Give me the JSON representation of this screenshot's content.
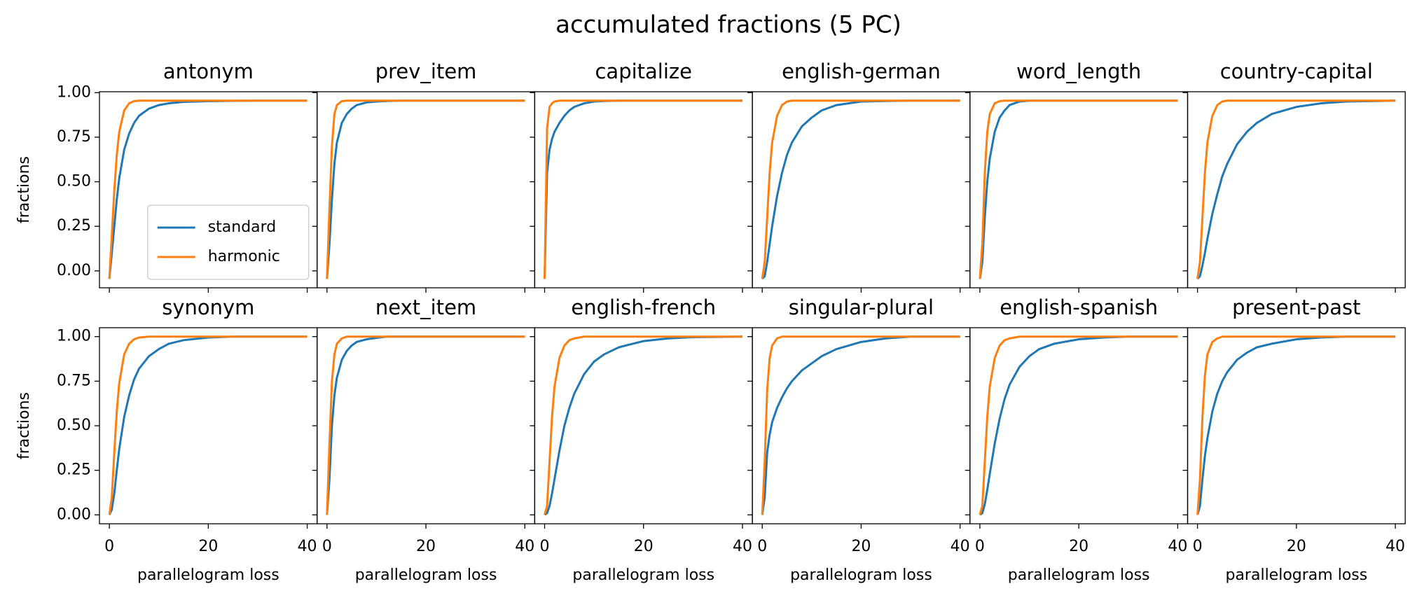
{
  "title": "accumulated fractions (5 PC)",
  "chart_data": [
    {
      "type": "line",
      "title": "antonym",
      "ylabel": "fractions",
      "legend": "lower right",
      "x": [
        0,
        0.5,
        1,
        1.5,
        2,
        3,
        4,
        5,
        6,
        8,
        10,
        12,
        15,
        20,
        25,
        30,
        40
      ],
      "series": [
        {
          "name": "standard",
          "color": "#1f77b4",
          "values": [
            -0.045,
            0.1,
            0.25,
            0.4,
            0.52,
            0.68,
            0.77,
            0.83,
            0.87,
            0.91,
            0.93,
            0.94,
            0.948,
            0.952,
            0.954,
            0.955,
            0.955
          ]
        },
        {
          "name": "harmonic",
          "color": "#ff7f0e",
          "values": [
            -0.045,
            0.2,
            0.45,
            0.65,
            0.78,
            0.9,
            0.94,
            0.952,
            0.955,
            0.955,
            0.955,
            0.955,
            0.955,
            0.955,
            0.955,
            0.955,
            0.955
          ]
        }
      ],
      "xlim": [
        -2,
        42
      ],
      "ylim": [
        -0.095,
        1.005
      ],
      "xticks": [
        0,
        20,
        40
      ],
      "yticks": [
        {
          "value": 0,
          "label": "0.00"
        },
        {
          "value": 0.25,
          "label": "0.25"
        },
        {
          "value": 0.5,
          "label": "0.50"
        },
        {
          "value": 0.75,
          "label": "0.75"
        },
        {
          "value": 1,
          "label": "1.00"
        }
      ]
    },
    {
      "type": "line",
      "title": "prev_item",
      "x": [
        0,
        0.5,
        1,
        1.5,
        2,
        3,
        4,
        5,
        6,
        8,
        10,
        12,
        15,
        20,
        25,
        30,
        40
      ],
      "series": [
        {
          "color": "#1f77b4",
          "values": [
            -0.045,
            0.15,
            0.4,
            0.6,
            0.72,
            0.83,
            0.88,
            0.91,
            0.93,
            0.945,
            0.95,
            0.953,
            0.955,
            0.955,
            0.955,
            0.955,
            0.955
          ]
        },
        {
          "color": "#ff7f0e",
          "values": [
            -0.045,
            0.35,
            0.7,
            0.88,
            0.93,
            0.952,
            0.955,
            0.955,
            0.955,
            0.955,
            0.955,
            0.955,
            0.955,
            0.955,
            0.955,
            0.955,
            0.955
          ]
        }
      ],
      "xlim": [
        -2,
        42
      ],
      "ylim": [
        -0.095,
        1.005
      ],
      "xticks": [
        0,
        20,
        40
      ],
      "yticks": [
        0,
        0.25,
        0.5,
        0.75,
        1
      ]
    },
    {
      "type": "line",
      "title": "capitalize",
      "x": [
        0,
        0.5,
        1,
        1.5,
        2,
        3,
        4,
        5,
        6,
        8,
        10,
        12,
        15,
        20,
        25,
        30,
        40
      ],
      "series": [
        {
          "color": "#1f77b4",
          "values": [
            -0.045,
            0.55,
            0.68,
            0.74,
            0.78,
            0.83,
            0.87,
            0.9,
            0.92,
            0.94,
            0.95,
            0.953,
            0.955,
            0.955,
            0.955,
            0.955,
            0.955
          ]
        },
        {
          "color": "#ff7f0e",
          "values": [
            -0.045,
            0.8,
            0.92,
            0.94,
            0.95,
            0.955,
            0.955,
            0.955,
            0.955,
            0.955,
            0.955,
            0.955,
            0.955,
            0.955,
            0.955,
            0.955,
            0.955
          ]
        }
      ],
      "xlim": [
        -2,
        42
      ],
      "ylim": [
        -0.095,
        1.005
      ],
      "xticks": [
        0,
        20,
        40
      ],
      "yticks": [
        0,
        0.25,
        0.5,
        0.75,
        1
      ]
    },
    {
      "type": "line",
      "title": "english-german",
      "x": [
        0,
        0.5,
        1,
        1.5,
        2,
        3,
        4,
        5,
        6,
        8,
        10,
        12,
        15,
        20,
        25,
        30,
        40
      ],
      "series": [
        {
          "color": "#1f77b4",
          "values": [
            -0.045,
            -0.03,
            0.05,
            0.15,
            0.25,
            0.42,
            0.55,
            0.65,
            0.72,
            0.81,
            0.86,
            0.9,
            0.93,
            0.95,
            0.953,
            0.955,
            0.955
          ]
        },
        {
          "color": "#ff7f0e",
          "values": [
            -0.045,
            0.05,
            0.3,
            0.55,
            0.72,
            0.87,
            0.93,
            0.95,
            0.955,
            0.955,
            0.955,
            0.955,
            0.955,
            0.955,
            0.955,
            0.955,
            0.955
          ]
        }
      ],
      "xlim": [
        -2,
        42
      ],
      "ylim": [
        -0.095,
        1.005
      ],
      "xticks": [
        0,
        20,
        40
      ],
      "yticks": [
        0,
        0.25,
        0.5,
        0.75,
        1
      ]
    },
    {
      "type": "line",
      "title": "word_length",
      "x": [
        0,
        0.5,
        1,
        1.5,
        2,
        3,
        4,
        5,
        6,
        8,
        10,
        12,
        15,
        20,
        25,
        30,
        40
      ],
      "series": [
        {
          "color": "#1f77b4",
          "values": [
            -0.045,
            0.05,
            0.3,
            0.5,
            0.63,
            0.78,
            0.86,
            0.9,
            0.93,
            0.95,
            0.955,
            0.955,
            0.955,
            0.955,
            0.955,
            0.955,
            0.955
          ]
        },
        {
          "color": "#ff7f0e",
          "values": [
            -0.045,
            0.15,
            0.55,
            0.78,
            0.88,
            0.94,
            0.952,
            0.955,
            0.955,
            0.955,
            0.955,
            0.955,
            0.955,
            0.955,
            0.955,
            0.955,
            0.955
          ]
        }
      ],
      "xlim": [
        -2,
        42
      ],
      "ylim": [
        -0.095,
        1.005
      ],
      "xticks": [
        0,
        20,
        40
      ],
      "yticks": [
        0,
        0.25,
        0.5,
        0.75,
        1
      ]
    },
    {
      "type": "line",
      "title": "country-capital",
      "x": [
        0,
        0.5,
        1,
        1.5,
        2,
        3,
        4,
        5,
        6,
        8,
        10,
        12,
        15,
        20,
        25,
        30,
        40
      ],
      "series": [
        {
          "color": "#1f77b4",
          "values": [
            -0.045,
            -0.03,
            0.03,
            0.1,
            0.18,
            0.32,
            0.43,
            0.53,
            0.6,
            0.71,
            0.78,
            0.83,
            0.88,
            0.92,
            0.94,
            0.95,
            0.955
          ]
        },
        {
          "color": "#ff7f0e",
          "values": [
            -0.045,
            0.05,
            0.3,
            0.55,
            0.72,
            0.87,
            0.93,
            0.95,
            0.955,
            0.955,
            0.955,
            0.955,
            0.955,
            0.955,
            0.955,
            0.955,
            0.955
          ]
        }
      ],
      "xlim": [
        -2,
        42
      ],
      "ylim": [
        -0.095,
        1.005
      ],
      "xticks": [
        0,
        20,
        40
      ],
      "yticks": [
        0,
        0.25,
        0.5,
        0.75,
        1
      ]
    },
    {
      "type": "line",
      "title": "synonym",
      "ylabel": "fractions",
      "xlabel": "parallelogram loss",
      "x": [
        0,
        0.5,
        1,
        1.5,
        2,
        3,
        4,
        5,
        6,
        8,
        10,
        12,
        15,
        20,
        25,
        30,
        40
      ],
      "series": [
        {
          "color": "#1f77b4",
          "values": [
            0,
            0.03,
            0.12,
            0.25,
            0.37,
            0.55,
            0.67,
            0.76,
            0.82,
            0.89,
            0.93,
            0.96,
            0.98,
            0.995,
            1,
            1,
            1
          ]
        },
        {
          "color": "#ff7f0e",
          "values": [
            0,
            0.1,
            0.35,
            0.58,
            0.74,
            0.9,
            0.96,
            0.985,
            0.995,
            1,
            1,
            1,
            1,
            1,
            1,
            1,
            1
          ]
        }
      ],
      "xlim": [
        -2,
        42
      ],
      "ylim": [
        -0.05,
        1.05
      ],
      "xticks": [
        0,
        20,
        40
      ],
      "yticks": [
        {
          "value": 0,
          "label": "0.00"
        },
        {
          "value": 0.25,
          "label": "0.25"
        },
        {
          "value": 0.5,
          "label": "0.50"
        },
        {
          "value": 0.75,
          "label": "0.75"
        },
        {
          "value": 1,
          "label": "1.00"
        }
      ]
    },
    {
      "type": "line",
      "title": "next_item",
      "xlabel": "parallelogram loss",
      "x": [
        0,
        0.5,
        1,
        1.5,
        2,
        3,
        4,
        5,
        6,
        8,
        10,
        12,
        15,
        20,
        25,
        30,
        40
      ],
      "series": [
        {
          "color": "#1f77b4",
          "values": [
            0,
            0.2,
            0.5,
            0.67,
            0.77,
            0.87,
            0.92,
            0.95,
            0.97,
            0.985,
            0.993,
            1,
            1,
            1,
            1,
            1,
            1
          ]
        },
        {
          "color": "#ff7f0e",
          "values": [
            0,
            0.4,
            0.75,
            0.9,
            0.96,
            0.99,
            1,
            1,
            1,
            1,
            1,
            1,
            1,
            1,
            1,
            1,
            1
          ]
        }
      ],
      "xlim": [
        -2,
        42
      ],
      "ylim": [
        -0.05,
        1.05
      ],
      "xticks": [
        0,
        20,
        40
      ],
      "yticks": [
        0,
        0.25,
        0.5,
        0.75,
        1
      ]
    },
    {
      "type": "line",
      "title": "english-french",
      "xlabel": "parallelogram loss",
      "x": [
        0,
        0.5,
        1,
        1.5,
        2,
        3,
        4,
        5,
        6,
        8,
        10,
        12,
        15,
        20,
        25,
        30,
        40
      ],
      "series": [
        {
          "color": "#1f77b4",
          "values": [
            0,
            0.01,
            0.05,
            0.12,
            0.2,
            0.36,
            0.5,
            0.6,
            0.68,
            0.79,
            0.86,
            0.9,
            0.94,
            0.975,
            0.99,
            0.997,
            1
          ]
        },
        {
          "color": "#ff7f0e",
          "values": [
            0,
            0.05,
            0.3,
            0.55,
            0.72,
            0.88,
            0.95,
            0.98,
            0.99,
            1,
            1,
            1,
            1,
            1,
            1,
            1,
            1
          ]
        }
      ],
      "xlim": [
        -2,
        42
      ],
      "ylim": [
        -0.05,
        1.05
      ],
      "xticks": [
        0,
        20,
        40
      ],
      "yticks": [
        0,
        0.25,
        0.5,
        0.75,
        1
      ]
    },
    {
      "type": "line",
      "title": "singular-plural",
      "xlabel": "parallelogram loss",
      "x": [
        0,
        0.5,
        1,
        1.5,
        2,
        3,
        4,
        5,
        6,
        8,
        10,
        12,
        15,
        20,
        25,
        30,
        40
      ],
      "series": [
        {
          "color": "#1f77b4",
          "values": [
            0,
            0.1,
            0.35,
            0.45,
            0.52,
            0.6,
            0.66,
            0.71,
            0.75,
            0.81,
            0.85,
            0.89,
            0.93,
            0.97,
            0.99,
            1,
            1
          ]
        },
        {
          "color": "#ff7f0e",
          "values": [
            0,
            0.3,
            0.7,
            0.88,
            0.95,
            0.99,
            1,
            1,
            1,
            1,
            1,
            1,
            1,
            1,
            1,
            1,
            1
          ]
        }
      ],
      "xlim": [
        -2,
        42
      ],
      "ylim": [
        -0.05,
        1.05
      ],
      "xticks": [
        0,
        20,
        40
      ],
      "yticks": [
        0,
        0.25,
        0.5,
        0.75,
        1
      ]
    },
    {
      "type": "line",
      "title": "english-spanish",
      "xlabel": "parallelogram loss",
      "x": [
        0,
        0.5,
        1,
        1.5,
        2,
        3,
        4,
        5,
        6,
        8,
        10,
        12,
        15,
        20,
        25,
        30,
        40
      ],
      "series": [
        {
          "color": "#1f77b4",
          "values": [
            0,
            0.01,
            0.06,
            0.14,
            0.23,
            0.4,
            0.54,
            0.65,
            0.73,
            0.83,
            0.89,
            0.93,
            0.96,
            0.985,
            0.995,
            1,
            1
          ]
        },
        {
          "color": "#ff7f0e",
          "values": [
            0,
            0.05,
            0.3,
            0.55,
            0.72,
            0.88,
            0.95,
            0.98,
            0.99,
            1,
            1,
            1,
            1,
            1,
            1,
            1,
            1
          ]
        }
      ],
      "xlim": [
        -2,
        42
      ],
      "ylim": [
        -0.05,
        1.05
      ],
      "xticks": [
        0,
        20,
        40
      ],
      "yticks": [
        0,
        0.25,
        0.5,
        0.75,
        1
      ]
    },
    {
      "type": "line",
      "title": "present-past",
      "xlabel": "parallelogram loss",
      "x": [
        0,
        0.5,
        1,
        1.5,
        2,
        3,
        4,
        5,
        6,
        8,
        10,
        12,
        15,
        20,
        25,
        30,
        40
      ],
      "series": [
        {
          "color": "#1f77b4",
          "values": [
            0,
            0.05,
            0.2,
            0.33,
            0.43,
            0.58,
            0.68,
            0.75,
            0.8,
            0.87,
            0.91,
            0.94,
            0.96,
            0.985,
            0.995,
            1,
            1
          ]
        },
        {
          "color": "#ff7f0e",
          "values": [
            0,
            0.2,
            0.55,
            0.78,
            0.9,
            0.97,
            0.99,
            1,
            1,
            1,
            1,
            1,
            1,
            1,
            1,
            1,
            1
          ]
        }
      ],
      "xlim": [
        -2,
        42
      ],
      "ylim": [
        -0.05,
        1.05
      ],
      "xticks": [
        0,
        20,
        40
      ],
      "yticks": [
        0,
        0.25,
        0.5,
        0.75,
        1
      ]
    }
  ]
}
